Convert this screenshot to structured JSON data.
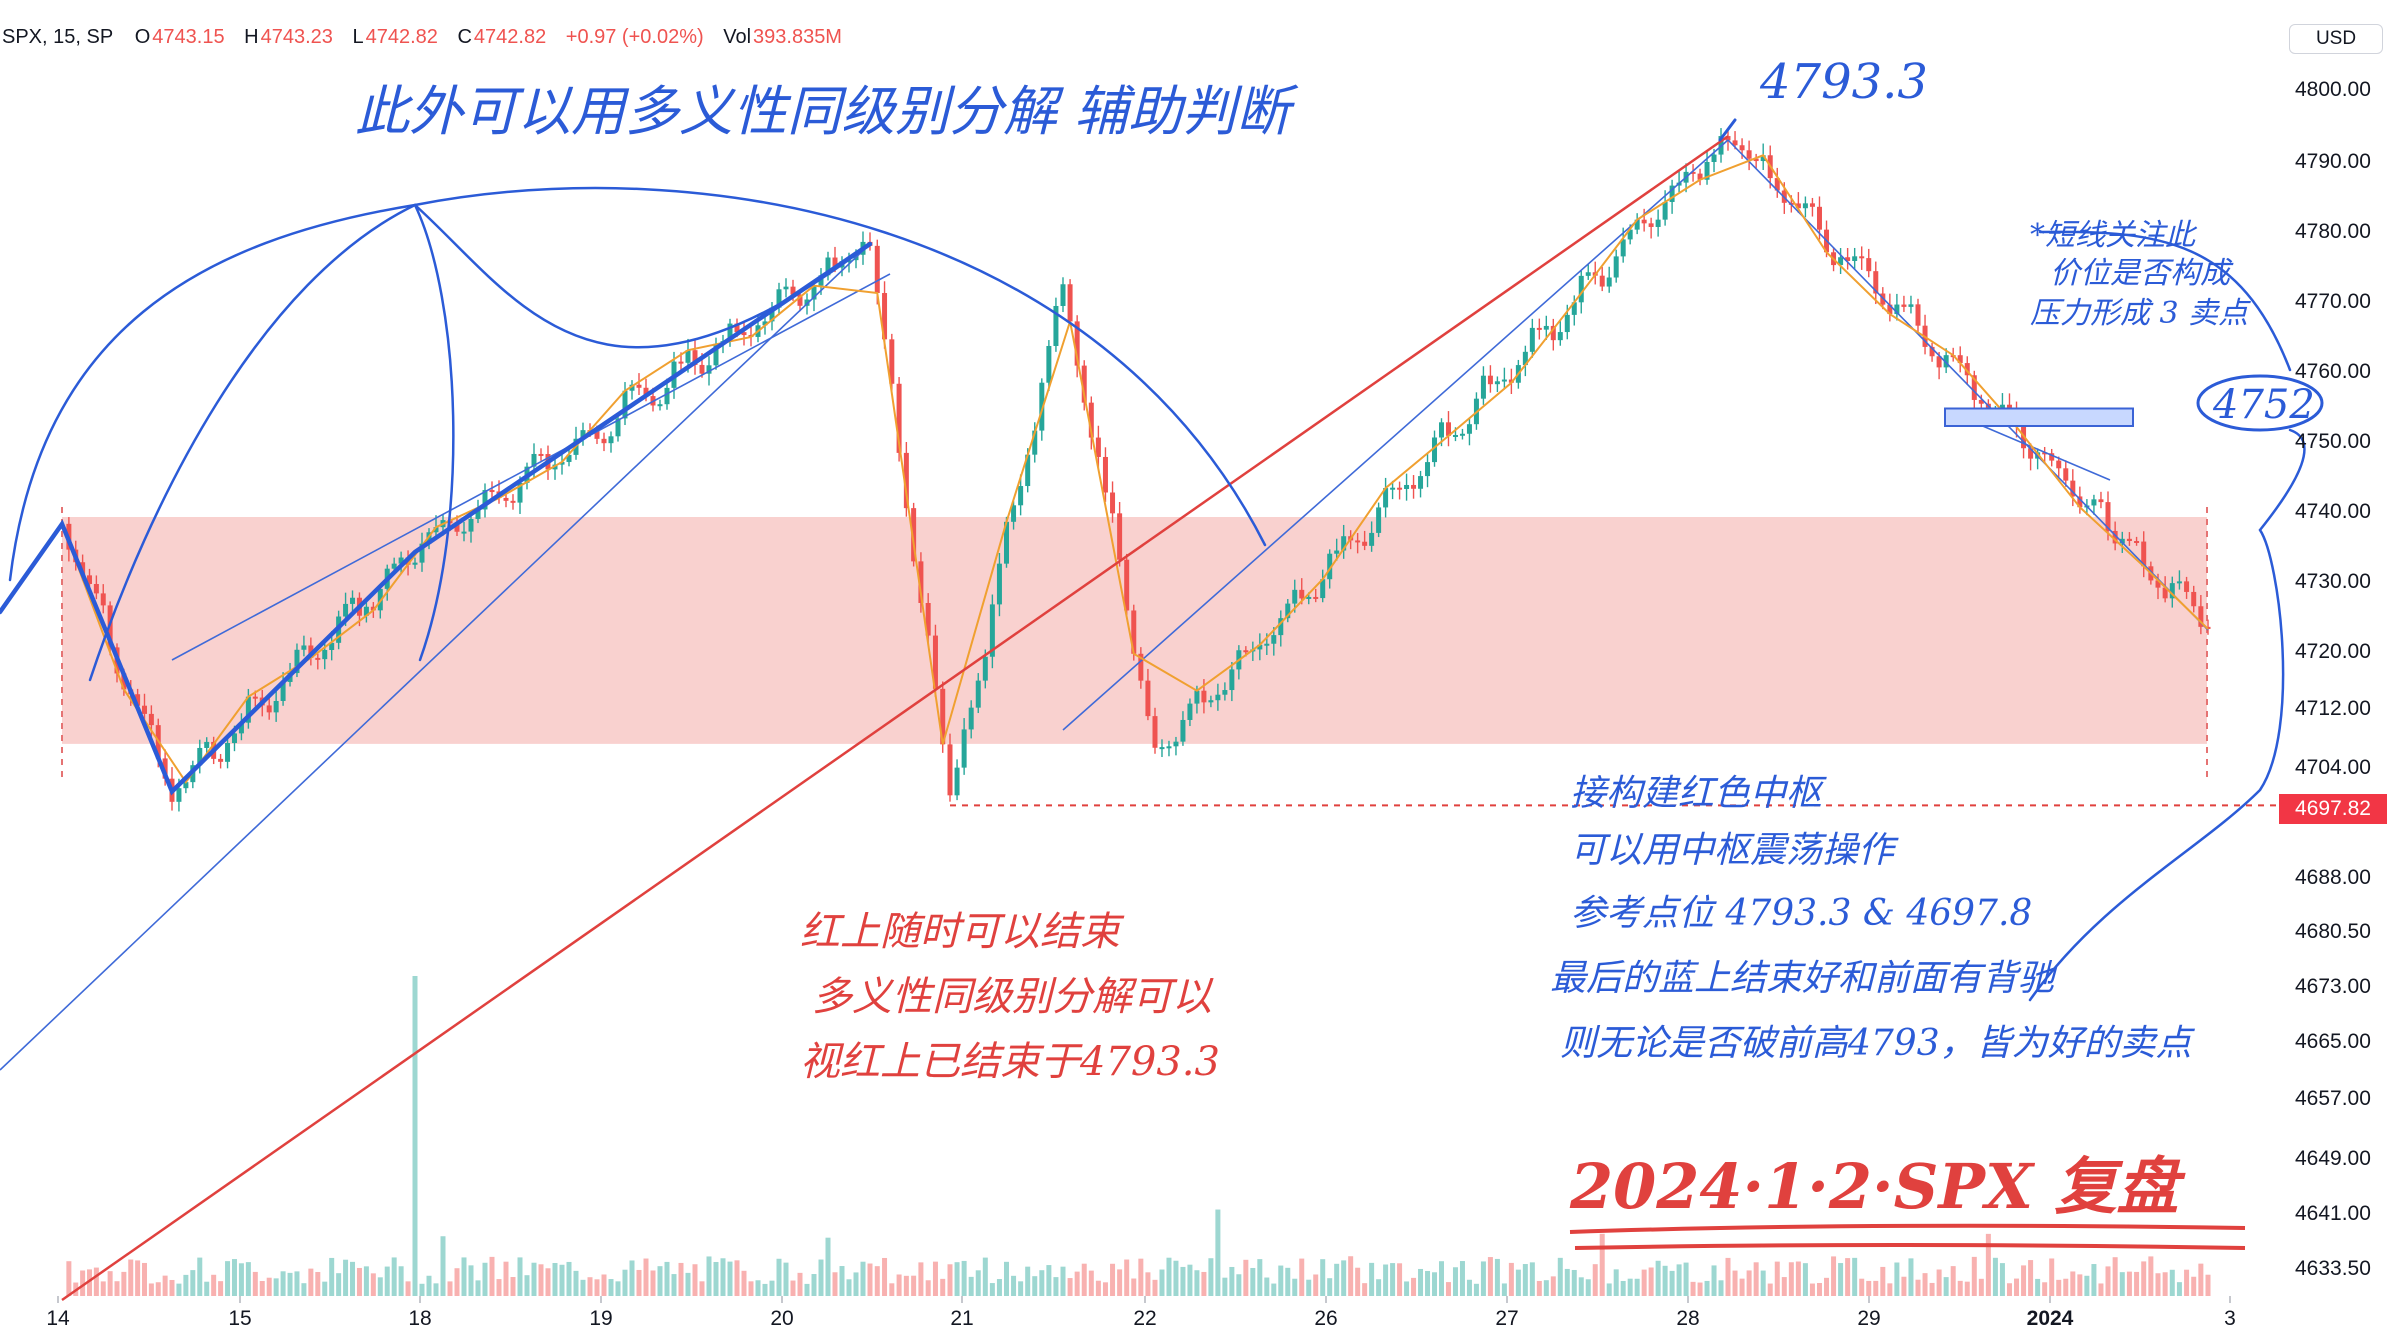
{
  "header": {
    "symbol": "SPX, 15, SP",
    "open_label": "O",
    "open": "4743.15",
    "high_label": "H",
    "high": "4743.23",
    "low_label": "L",
    "low": "4742.82",
    "close_label": "C",
    "close": "4742.82",
    "change": "+0.97 (+0.02%)",
    "vol_label": "Vol",
    "volume": "393.835M"
  },
  "currency": "USD",
  "last_price_label": "4697.82",
  "colors": {
    "up": "#26a69a",
    "down": "#ef5350",
    "zone_fill": "#f8c9c7",
    "blue_ink": "#2b5bd7",
    "red_ink": "#e0413e",
    "orange": "#f0a030",
    "last_label_bg": "#f23645"
  },
  "chart_data": {
    "type": "candlestick",
    "symbol": "SPX",
    "interval": "15",
    "y_ticks": [
      "4800.00",
      "4790.00",
      "4780.00",
      "4770.00",
      "4760.00",
      "4750.00",
      "4740.00",
      "4730.00",
      "4720.00",
      "4712.00",
      "4704.00",
      "4696.00",
      "4688.00",
      "4680.50",
      "4673.00",
      "4665.00",
      "4657.00",
      "4649.00",
      "4641.00",
      "4633.50"
    ],
    "x_ticks": [
      "14",
      "15",
      "18",
      "19",
      "20",
      "21",
      "22",
      "26",
      "27",
      "28",
      "29",
      "2024",
      "3"
    ],
    "x_tick_bold": "2024",
    "ylim": [
      4630,
      4805
    ],
    "swing_points": [
      {
        "session": "14",
        "price": 4738
      },
      {
        "session": "15",
        "price": 4700
      },
      {
        "session": "18",
        "price": 4734
      },
      {
        "session": "20",
        "price": 4778
      },
      {
        "session": "21",
        "price": 4697.82
      },
      {
        "session": "22",
        "price": 4772
      },
      {
        "session": "22",
        "price": 4706
      },
      {
        "session": "28",
        "price": 4793.3
      },
      {
        "session": "2024",
        "price": 4738
      },
      {
        "session": "3",
        "price": 4723
      }
    ],
    "consolidation_zone": {
      "from": 4707,
      "to": 4739
    },
    "resistance_box": {
      "from": 4752,
      "to": 4754.5
    },
    "reference_line": 4697.82
  },
  "annotations": {
    "top_note": "此外可以用多义性同级别分解 辅助判断",
    "peak_value": "4793.3",
    "right_note": [
      "*短线关注此",
      "价位是否构成",
      "压力形成 3 卖点"
    ],
    "circle_value": "4752",
    "red_note": [
      "红上随时可以结束",
      "多义性同级别分解可以",
      "视红上已结束于4793.3"
    ],
    "blue_note": [
      "接构建红色中枢",
      "可以用中枢震荡操作",
      "参考点位 4793.3 & 4697.8",
      "最后的蓝上结束好和前面有背驰",
      "则无论是否破前高4793，皆为好的卖点"
    ],
    "date_stamp": "2024·1·2·SPX 复盘"
  }
}
